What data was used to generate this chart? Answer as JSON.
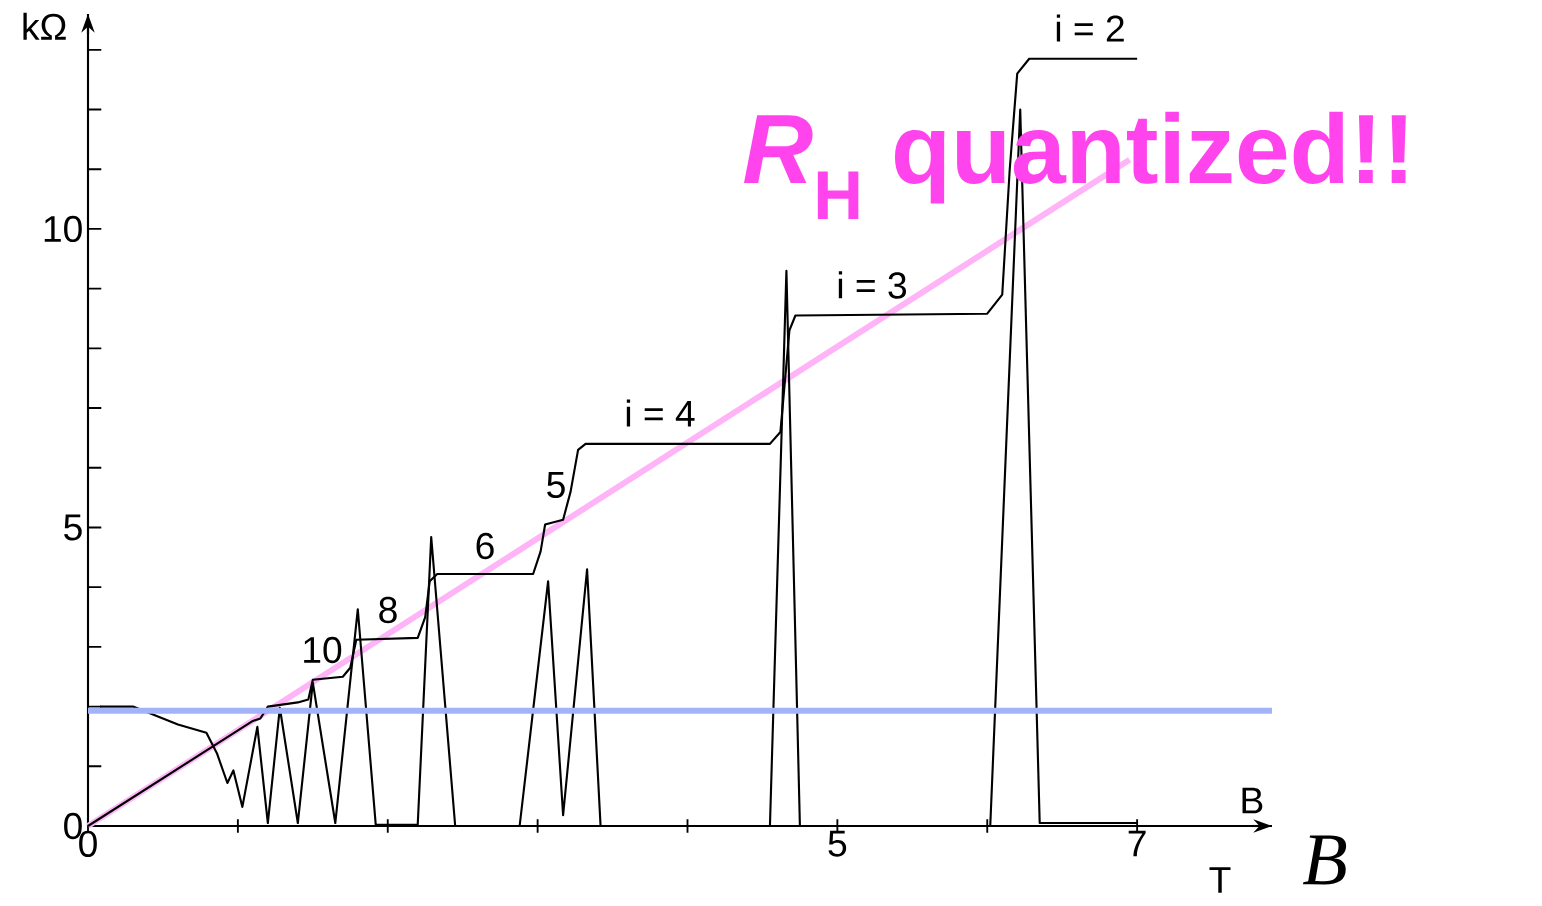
{
  "chart_data": {
    "type": "line",
    "xlabel": "B",
    "ylabel": "kΩ",
    "xlim": [
      0,
      7.9
    ],
    "ylim": [
      0,
      13.6
    ],
    "xticks": [
      0,
      {
        "value": 1,
        "label": null
      },
      {
        "value": 2,
        "label": null
      },
      {
        "value": 3,
        "label": null
      },
      {
        "value": 4,
        "label": null
      },
      5,
      {
        "value": 6,
        "label": null
      },
      7
    ],
    "yticks": [
      0,
      {
        "value": 1,
        "label": null
      },
      {
        "value": 2,
        "label": null
      },
      {
        "value": 3,
        "label": null
      },
      {
        "value": 4,
        "label": null
      },
      5,
      {
        "value": 6,
        "label": null
      },
      {
        "value": 7,
        "label": null
      },
      {
        "value": 8,
        "label": null
      },
      {
        "value": 9,
        "label": null
      },
      10,
      {
        "value": 11,
        "label": null
      },
      {
        "value": 12,
        "label": null
      },
      {
        "value": 13,
        "label": null
      }
    ],
    "marker": "none",
    "line_style": "solid",
    "series": [
      {
        "color": "#ffb4f8",
        "x": [
          0,
          6.95
        ],
        "values": [
          0,
          11.16
        ]
      },
      {
        "color": "#000000",
        "x": [
          0,
          1.1,
          1.15,
          1.2,
          1.4,
          1.47,
          1.5,
          1.7,
          1.75,
          1.79,
          2.2,
          2.25,
          2.28,
          2.33,
          2.97,
          3.02,
          3.05,
          3.17,
          3.22,
          3.27,
          3.32,
          4.55,
          4.62,
          4.68,
          4.72,
          6.0,
          6.1,
          6.15,
          6.2,
          6.28,
          7.0
        ],
        "values": [
          0,
          1.76,
          1.8,
          2.0,
          2.07,
          2.12,
          2.45,
          2.5,
          2.65,
          3.12,
          3.15,
          3.5,
          4.1,
          4.22,
          4.22,
          4.6,
          5.05,
          5.13,
          5.6,
          6.3,
          6.4,
          6.4,
          6.6,
          8.3,
          8.55,
          8.58,
          8.9,
          11.0,
          12.6,
          12.85,
          12.85
        ]
      },
      {
        "color": "#000000",
        "x": [
          0.08,
          0.3,
          0.6,
          0.79,
          0.86,
          0.93,
          0.97,
          1.03,
          1.13,
          1.2,
          1.28,
          1.4,
          1.5,
          1.65,
          1.8,
          1.92,
          2.2,
          2.29,
          2.45,
          2.88,
          3.07,
          3.17,
          3.33,
          3.42,
          4.55,
          4.66,
          4.75,
          6.02,
          6.22,
          6.35,
          7.0
        ],
        "values": [
          2.0,
          2.0,
          1.7,
          1.56,
          1.22,
          0.72,
          0.93,
          0.32,
          1.66,
          0.05,
          1.98,
          0.05,
          2.4,
          0.05,
          3.63,
          0.02,
          0.02,
          4.84,
          0.0,
          0.0,
          4.1,
          0.18,
          4.3,
          0.0,
          0.0,
          9.3,
          0.0,
          0.0,
          12.0,
          0.05,
          0.05
        ]
      }
    ],
    "ref_lines": [
      {
        "axis": "y",
        "value": 1.93,
        "color": "#a3b3f8"
      }
    ],
    "annotations": [
      "i = 2",
      "i = 3",
      "i = 4",
      "5",
      "6",
      "8",
      "10",
      "*R*$_{H}$ quantized!!",
      "T",
      "B"
    ]
  }
}
